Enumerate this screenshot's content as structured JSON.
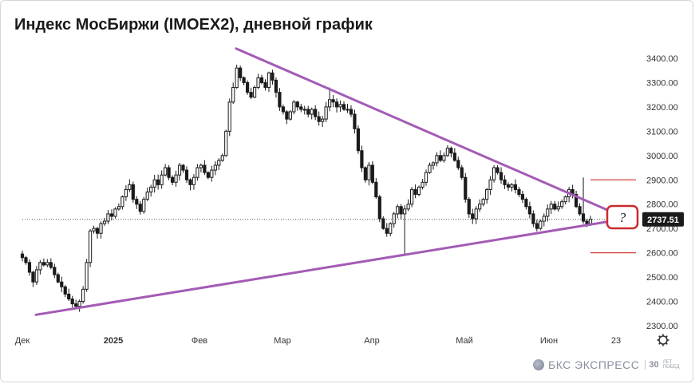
{
  "title": "Индекс МосБиржи (IMOEX2), дневной график",
  "brand": {
    "name": "БКС ЭКСПРЕСС",
    "badge": "30",
    "sub": "ЛЕТ ПОБЕД"
  },
  "colors": {
    "up": "#1a1a1a",
    "down": "#1a1a1a",
    "triangle": "#a35bb5",
    "levels": "#d0413b",
    "callout": "#cc2a2a",
    "price_label_bg": "#1a1a1a",
    "price_label_text": "#ffffff",
    "axis_text": "#333333"
  },
  "chart_data": {
    "type": "candlestick",
    "title": "Индекс МосБиржи (IMOEX2), дневной график",
    "y_axis": {
      "min": 2300,
      "max": 3400,
      "ticks": [
        "2300.00",
        "2400.00",
        "2500.00",
        "2600.00",
        "2700.00",
        "2800.00",
        "2900.00",
        "3000.00",
        "3100.00",
        "3200.00",
        "3300.00",
        "3400.00"
      ]
    },
    "x_axis": {
      "labels": [
        "Дек",
        "2025",
        "Фев",
        "Мар",
        "Апр",
        "Май",
        "Июн",
        "23"
      ]
    },
    "last_price": "2737.51",
    "annotation": "?",
    "resistance_line": {
      "from": [
        0,
        3440
      ],
      "to": [
        1,
        2775
      ]
    },
    "support_line": {
      "from": [
        0,
        2345
      ],
      "to": [
        1,
        2728
      ]
    },
    "target_levels": [
      2900,
      2600
    ],
    "close": [
      2580,
      2560,
      2520,
      2480,
      2530,
      2560,
      2550,
      2560,
      2540,
      2510,
      2480,
      2460,
      2430,
      2410,
      2390,
      2380,
      2400,
      2450,
      2560,
      2690,
      2700,
      2680,
      2720,
      2730,
      2760,
      2750,
      2780,
      2790,
      2830,
      2860,
      2880,
      2820,
      2800,
      2770,
      2820,
      2850,
      2870,
      2900,
      2880,
      2920,
      2950,
      2910,
      2890,
      2920,
      2960,
      2940,
      2900,
      2880,
      2910,
      2950,
      2960,
      2930,
      2910,
      2940,
      2960,
      2980,
      3000,
      3100,
      3220,
      3280,
      3360,
      3320,
      3300,
      3260,
      3240,
      3280,
      3320,
      3300,
      3280,
      3340,
      3310,
      3260,
      3200,
      3180,
      3150,
      3180,
      3220,
      3200,
      3190,
      3190,
      3170,
      3190,
      3160,
      3140,
      3150,
      3200,
      3230,
      3220,
      3200,
      3210,
      3190,
      3190,
      3170,
      3110,
      3020,
      2950,
      2900,
      2960,
      2890,
      2830,
      2740,
      2700,
      2680,
      2720,
      2760,
      2790,
      2760,
      2780,
      2800,
      2860,
      2840,
      2870,
      2890,
      2930,
      2960,
      2970,
      3000,
      2980,
      3000,
      3030,
      3010,
      2980,
      2950,
      2910,
      2820,
      2760,
      2740,
      2780,
      2800,
      2820,
      2860,
      2900,
      2950,
      2930,
      2900,
      2880,
      2870,
      2880,
      2860,
      2840,
      2820,
      2790,
      2760,
      2720,
      2700,
      2730,
      2750,
      2780,
      2800,
      2780,
      2790,
      2810,
      2830,
      2860,
      2840,
      2790,
      2760,
      2730,
      2720,
      2737.51
    ],
    "high_excursions": {
      "candle_86_high": 3280,
      "candle_157_high": 2910,
      "candle_107_low": 2590
    }
  }
}
